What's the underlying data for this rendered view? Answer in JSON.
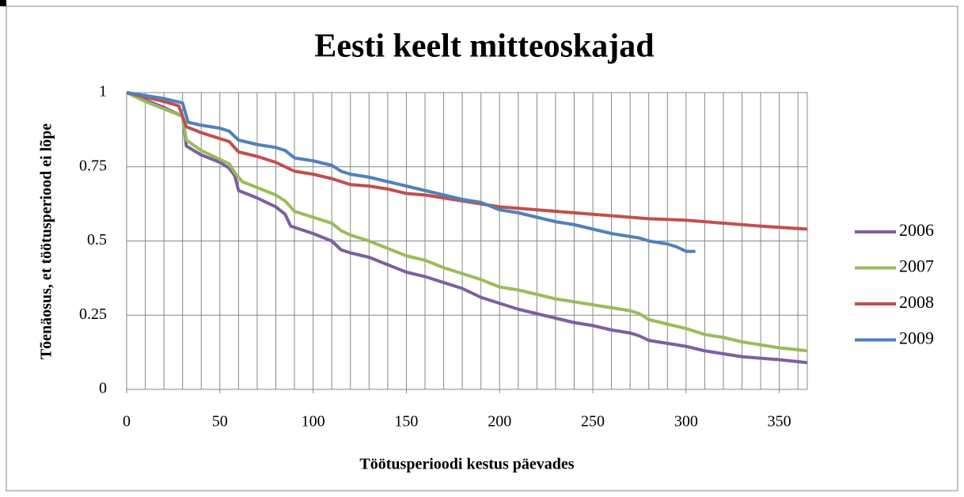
{
  "chart_data": {
    "type": "line",
    "title": "Eesti keelt mitteoskajad",
    "x_label": "Töötusperioodi kestus päevades",
    "y_label": "Tõenäosus, et töötusperiood ei lõpe",
    "xlim": [
      0,
      365
    ],
    "xticks": [
      0,
      50,
      100,
      150,
      200,
      250,
      300,
      350
    ],
    "x_minor_step": 10,
    "ylim": [
      0,
      1
    ],
    "yticks": [
      0,
      0.25,
      0.5,
      0.75,
      1
    ],
    "grid": true,
    "legend": "right",
    "series": [
      {
        "name": "2006",
        "color": "#7d5fa0",
        "x": [
          0,
          10,
          20,
          30,
          32,
          40,
          50,
          55,
          58,
          60,
          70,
          80,
          85,
          88,
          100,
          110,
          115,
          120,
          130,
          140,
          150,
          160,
          170,
          180,
          190,
          200,
          210,
          220,
          230,
          240,
          250,
          260,
          270,
          275,
          280,
          290,
          300,
          310,
          320,
          330,
          340,
          350,
          365
        ],
        "values": [
          1,
          0.975,
          0.95,
          0.92,
          0.82,
          0.79,
          0.765,
          0.745,
          0.72,
          0.67,
          0.645,
          0.615,
          0.59,
          0.55,
          0.525,
          0.5,
          0.47,
          0.46,
          0.445,
          0.42,
          0.395,
          0.38,
          0.36,
          0.34,
          0.31,
          0.29,
          0.27,
          0.255,
          0.24,
          0.225,
          0.215,
          0.2,
          0.19,
          0.18,
          0.165,
          0.155,
          0.145,
          0.13,
          0.12,
          0.11,
          0.105,
          0.1,
          0.09
        ]
      },
      {
        "name": "2007",
        "color": "#9bbb59",
        "x": [
          0,
          10,
          20,
          30,
          32,
          40,
          50,
          55,
          58,
          62,
          70,
          80,
          85,
          90,
          100,
          110,
          115,
          120,
          130,
          140,
          150,
          160,
          170,
          180,
          190,
          200,
          210,
          220,
          230,
          240,
          250,
          260,
          270,
          275,
          280,
          290,
          300,
          310,
          320,
          330,
          340,
          350,
          365
        ],
        "values": [
          1,
          0.97,
          0.945,
          0.92,
          0.84,
          0.805,
          0.775,
          0.76,
          0.73,
          0.7,
          0.68,
          0.655,
          0.635,
          0.6,
          0.58,
          0.56,
          0.535,
          0.52,
          0.5,
          0.475,
          0.45,
          0.435,
          0.41,
          0.39,
          0.37,
          0.345,
          0.335,
          0.32,
          0.305,
          0.295,
          0.285,
          0.275,
          0.265,
          0.255,
          0.235,
          0.22,
          0.205,
          0.185,
          0.175,
          0.16,
          0.15,
          0.14,
          0.13
        ]
      },
      {
        "name": "2008",
        "color": "#c0504d",
        "x": [
          0,
          10,
          20,
          28,
          32,
          40,
          50,
          55,
          60,
          70,
          80,
          85,
          90,
          100,
          110,
          115,
          120,
          130,
          140,
          150,
          160,
          170,
          180,
          190,
          200,
          220,
          240,
          260,
          280,
          300,
          320,
          340,
          365
        ],
        "values": [
          1,
          0.985,
          0.97,
          0.955,
          0.885,
          0.865,
          0.845,
          0.835,
          0.8,
          0.785,
          0.765,
          0.75,
          0.735,
          0.725,
          0.71,
          0.7,
          0.69,
          0.685,
          0.675,
          0.66,
          0.655,
          0.645,
          0.635,
          0.625,
          0.615,
          0.605,
          0.595,
          0.585,
          0.575,
          0.57,
          0.56,
          0.55,
          0.54
        ]
      },
      {
        "name": "2009",
        "color": "#4f81bd",
        "x": [
          0,
          10,
          20,
          30,
          33,
          40,
          50,
          55,
          60,
          70,
          80,
          85,
          90,
          100,
          110,
          115,
          120,
          130,
          140,
          150,
          160,
          170,
          180,
          190,
          200,
          210,
          220,
          230,
          240,
          250,
          260,
          270,
          275,
          280,
          290,
          295,
          300,
          305
        ],
        "values": [
          1,
          0.99,
          0.98,
          0.965,
          0.9,
          0.89,
          0.88,
          0.87,
          0.84,
          0.825,
          0.815,
          0.805,
          0.78,
          0.77,
          0.755,
          0.735,
          0.725,
          0.715,
          0.7,
          0.685,
          0.67,
          0.655,
          0.64,
          0.63,
          0.605,
          0.595,
          0.58,
          0.565,
          0.555,
          0.54,
          0.525,
          0.515,
          0.51,
          0.5,
          0.49,
          0.48,
          0.465,
          0.465
        ]
      }
    ]
  }
}
